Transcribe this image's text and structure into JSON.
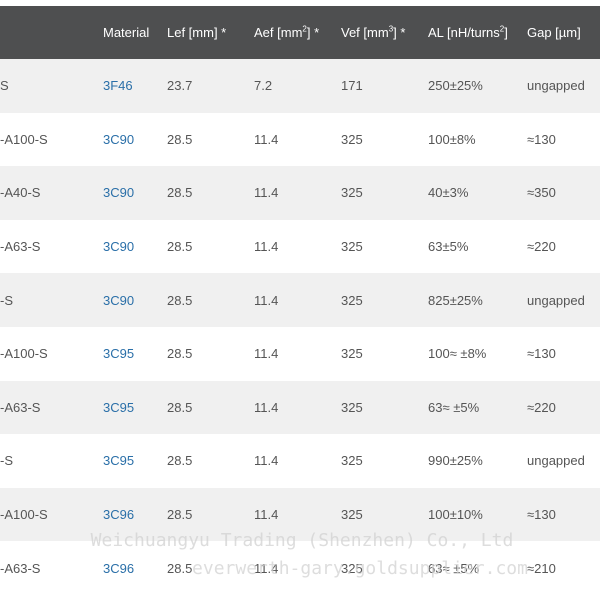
{
  "table": {
    "headers": {
      "type": "",
      "material": "Material",
      "lef": "Lef [mm] *",
      "aef_pre": "Aef [mm",
      "aef_sup": "2",
      "aef_post": "] *",
      "vef_pre": "Vef [mm",
      "vef_sup": "3",
      "vef_post": "] *",
      "al_pre": "AL [nH/turns",
      "al_sup": "2",
      "al_post": "]",
      "gap": "Gap [µm]"
    },
    "rows": [
      {
        "type": "S",
        "material": "3F46",
        "lef": "23.7",
        "aef": "7.2",
        "vef": "171",
        "al": "250±25%",
        "gap": "ungapped"
      },
      {
        "type": "-A100-S",
        "material": "3C90",
        "lef": "28.5",
        "aef": "11.4",
        "vef": "325",
        "al": "100±8%",
        "gap": "≈130"
      },
      {
        "type": "-A40-S",
        "material": "3C90",
        "lef": "28.5",
        "aef": "11.4",
        "vef": "325",
        "al": "40±3%",
        "gap": "≈350"
      },
      {
        "type": "-A63-S",
        "material": "3C90",
        "lef": "28.5",
        "aef": "11.4",
        "vef": "325",
        "al": "63±5%",
        "gap": "≈220"
      },
      {
        "type": "-S",
        "material": "3C90",
        "lef": "28.5",
        "aef": "11.4",
        "vef": "325",
        "al": "825±25%",
        "gap": "ungapped"
      },
      {
        "type": "-A100-S",
        "material": "3C95",
        "lef": "28.5",
        "aef": "11.4",
        "vef": "325",
        "al": "100≈ ±8%",
        "gap": "≈130"
      },
      {
        "type": "-A63-S",
        "material": "3C95",
        "lef": "28.5",
        "aef": "11.4",
        "vef": "325",
        "al": "63≈ ±5%",
        "gap": "≈220"
      },
      {
        "type": "-S",
        "material": "3C95",
        "lef": "28.5",
        "aef": "11.4",
        "vef": "325",
        "al": "990±25%",
        "gap": "ungapped"
      },
      {
        "type": "-A100-S",
        "material": "3C96",
        "lef": "28.5",
        "aef": "11.4",
        "vef": "325",
        "al": "100±10%",
        "gap": "≈130"
      },
      {
        "type": "-A63-S",
        "material": "3C96",
        "lef": "28.5",
        "aef": "11.4",
        "vef": "325",
        "al": "63≈ ±5%",
        "gap": "≈210"
      }
    ]
  },
  "watermark": {
    "line1": "Weichuangyu Trading (Shenzhen) Co., Ltd",
    "line2": "everwerth-gary.goldsupplier.com"
  }
}
